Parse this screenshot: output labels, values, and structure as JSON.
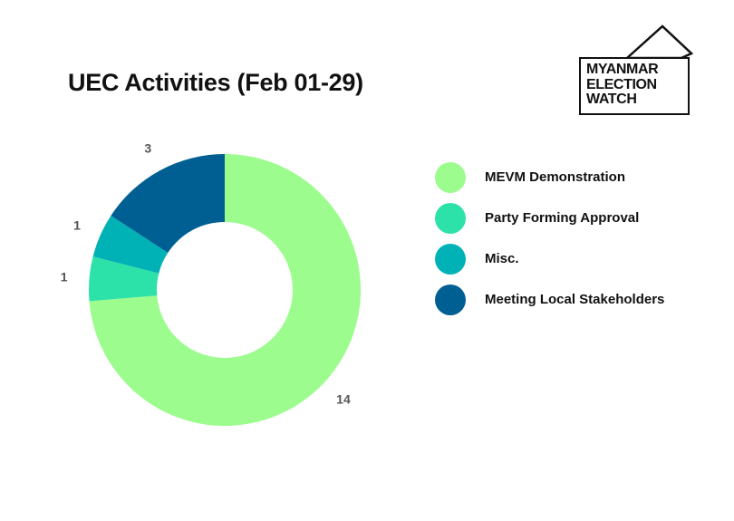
{
  "header": {
    "title": "UEC Activities (Feb 01-29)"
  },
  "logo": {
    "lines": [
      "MYANMAR",
      "ELECTION",
      "WATCH"
    ]
  },
  "chart_data": {
    "type": "pie",
    "variant": "donut",
    "title": "UEC Activities (Feb 01-29)",
    "legend_position": "right",
    "series": [
      {
        "name": "MEVM Demonstration",
        "value": 14,
        "color": "#9cfc8e"
      },
      {
        "name": "Party Forming Approval",
        "value": 1,
        "color": "#2de2a8"
      },
      {
        "name": "Misc.",
        "value": 1,
        "color": "#00b2b6"
      },
      {
        "name": "Meeting Local Stakeholders",
        "value": 3,
        "color": "#005f92"
      }
    ]
  }
}
